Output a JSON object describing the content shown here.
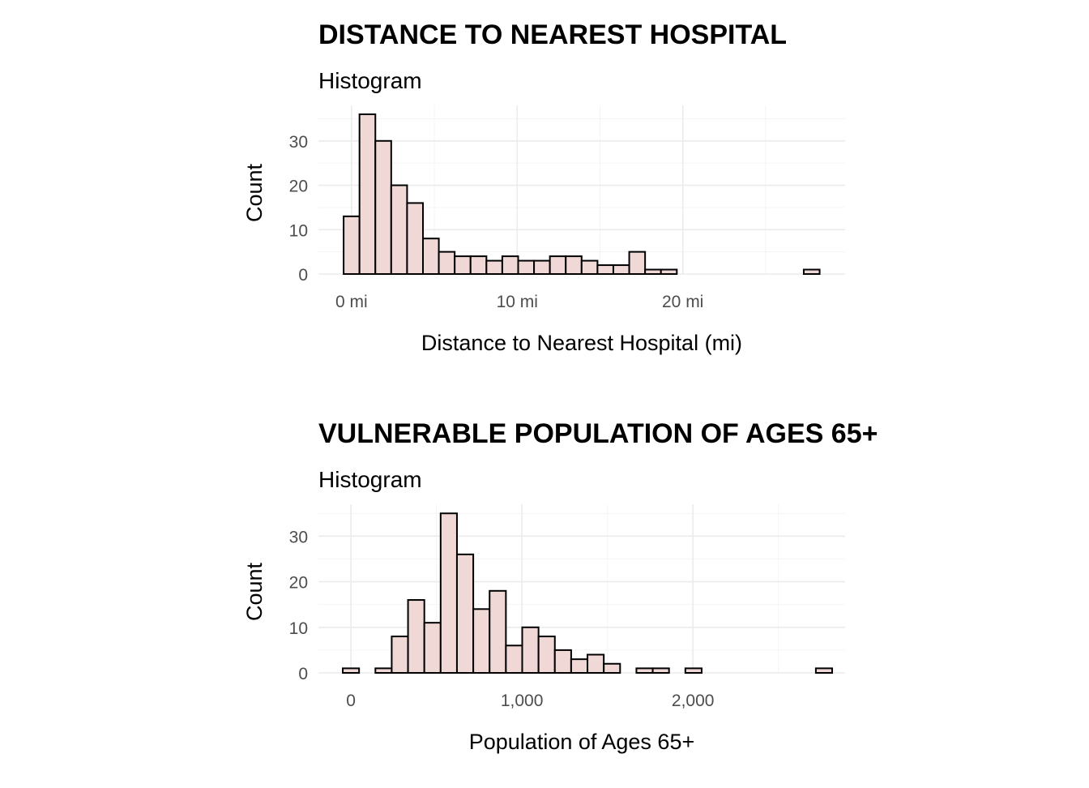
{
  "chart_data": [
    {
      "type": "bar",
      "title": "DISTANCE TO NEAREST HOSPITAL",
      "subtitle": "Histogram",
      "xlabel": "Distance to Nearest Hospital (mi)",
      "ylabel": "Count",
      "xlim": [
        -2,
        29.8
      ],
      "ylim": [
        0,
        38
      ],
      "x_ticks": [
        0,
        10,
        20
      ],
      "x_tick_labels": [
        "0 mi",
        "10 mi",
        "20 mi"
      ],
      "y_ticks": [
        0,
        10,
        20,
        30
      ],
      "y_tick_labels": [
        "0",
        "10",
        "20",
        "30"
      ],
      "grid": true,
      "bin_width": 0.958,
      "bin_centers": [
        0.0,
        0.958,
        1.916,
        2.874,
        3.832,
        4.79,
        5.748,
        6.706,
        7.664,
        8.622,
        9.58,
        10.538,
        11.496,
        12.454,
        13.412,
        14.37,
        15.328,
        16.286,
        17.244,
        18.202,
        19.16,
        20.118,
        21.076,
        22.034,
        22.992,
        23.95,
        24.908,
        25.866,
        26.824,
        27.782
      ],
      "values": [
        13,
        36,
        30,
        20,
        16,
        8,
        5,
        4,
        4,
        3,
        4,
        3,
        3,
        4,
        4,
        3,
        2,
        2,
        5,
        1,
        1,
        0,
        0,
        0,
        0,
        0,
        0,
        0,
        0,
        1
      ]
    },
    {
      "type": "bar",
      "title": "VULNERABLE POPULATION OF AGES 65+",
      "subtitle": "Histogram",
      "xlabel": "Population of Ages 65+",
      "ylabel": "Count",
      "xlim": [
        -190,
        2890
      ],
      "ylim": [
        0,
        37
      ],
      "x_ticks": [
        0,
        1000,
        2000
      ],
      "x_tick_labels": [
        "0",
        "1,000",
        "2,000"
      ],
      "y_ticks": [
        0,
        10,
        20,
        30
      ],
      "y_tick_labels": [
        "0",
        "10",
        "20",
        "30"
      ],
      "grid": true,
      "bin_width": 95.4,
      "bin_centers": [
        0.0,
        95.4,
        190.8,
        286.2,
        381.6,
        477.0,
        572.4,
        667.8,
        763.2,
        858.6,
        954.0,
        1049.4,
        1144.8,
        1240.2,
        1335.6,
        1431.0,
        1526.4,
        1621.8,
        1717.2,
        1812.6,
        1908.0,
        2003.4,
        2098.8,
        2194.2,
        2289.6,
        2385.0,
        2480.4,
        2575.8,
        2671.2,
        2766.6
      ],
      "values": [
        1,
        0,
        1,
        8,
        16,
        11,
        35,
        26,
        14,
        18,
        6,
        10,
        8,
        5,
        3,
        4,
        2,
        0,
        1,
        1,
        0,
        1,
        0,
        0,
        0,
        0,
        0,
        0,
        0,
        1
      ]
    }
  ]
}
